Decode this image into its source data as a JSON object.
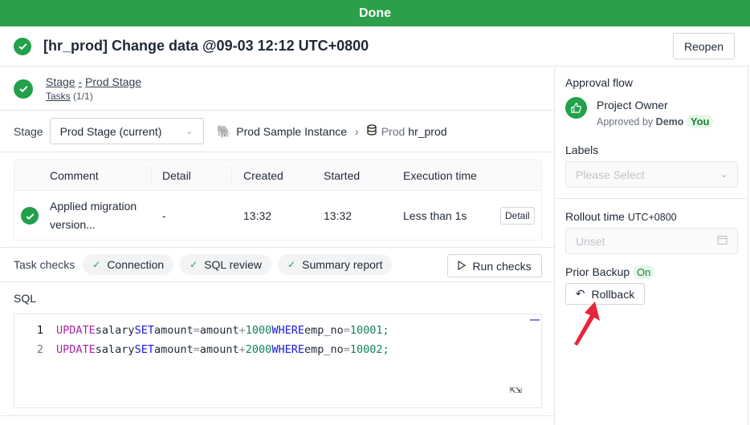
{
  "banner": {
    "text": "Done",
    "color": "#2c9f4b"
  },
  "header": {
    "title": "[hr_prod] Change data @09-03 12:12 UTC+0800",
    "reopen": "Reopen"
  },
  "stage": {
    "stage_link": "Stage",
    "dash": "-",
    "prod_link": "Prod Stage",
    "tasks_link": "Tasks",
    "tasks_count": "(1/1)"
  },
  "stage_row": {
    "label": "Stage",
    "selected": "Prod Stage (current)",
    "instance": "Prod Sample Instance",
    "env": "Prod",
    "database": "hr_prod"
  },
  "task_table": {
    "headers": [
      "Comment",
      "Detail",
      "Created",
      "Started",
      "Execution time"
    ],
    "rows": [
      {
        "comment_line1": "Applied migration",
        "comment_line2": "version...",
        "detail": "-",
        "created": "13:32",
        "started": "13:32",
        "execution_time": "Less than 1s",
        "action": "Detail"
      }
    ]
  },
  "task_checks": {
    "label": "Task checks",
    "checks": [
      "Connection",
      "SQL review",
      "Summary report"
    ],
    "run": "Run checks"
  },
  "sql": {
    "label": "SQL",
    "lines": [
      {
        "num": "1",
        "tokens": [
          [
            "kw1",
            "UPDATE"
          ],
          [
            "",
            "salary"
          ],
          [
            "kw2",
            "SET"
          ],
          [
            "",
            "amount"
          ],
          [
            "op",
            "="
          ],
          [
            "",
            "amount"
          ],
          [
            "op",
            "+"
          ],
          [
            "num",
            "1000"
          ],
          [
            "kw2",
            "WHERE"
          ],
          [
            "",
            "emp_no"
          ],
          [
            "op",
            "="
          ],
          [
            "num",
            "10001;"
          ]
        ]
      },
      {
        "num": "2",
        "tokens": [
          [
            "kw1",
            "UPDATE"
          ],
          [
            "",
            "salary"
          ],
          [
            "kw2",
            "SET"
          ],
          [
            "",
            "amount"
          ],
          [
            "op",
            "="
          ],
          [
            "",
            "amount"
          ],
          [
            "op",
            "+"
          ],
          [
            "num",
            "2000"
          ],
          [
            "kw2",
            "WHERE"
          ],
          [
            "",
            "emp_no"
          ],
          [
            "op",
            "="
          ],
          [
            "num",
            "10002;"
          ]
        ]
      }
    ]
  },
  "sidebar": {
    "approval_flow": "Approval flow",
    "approver_role": "Project Owner",
    "approved_by": "Approved by",
    "approver_name": "Demo",
    "you_tag": "You",
    "labels": "Labels",
    "labels_placeholder": "Please Select",
    "rollout_time": "Rollout time",
    "timezone": "UTC+0800",
    "rollout_placeholder": "Unset",
    "prior_backup": "Prior Backup",
    "prior_backup_status": "On",
    "rollback": "Rollback"
  }
}
